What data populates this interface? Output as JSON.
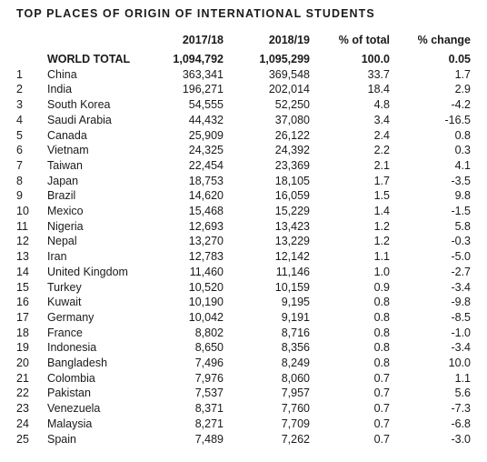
{
  "title": "TOP PLACES OF ORIGIN OF INTERNATIONAL STUDENTS",
  "columns": [
    "",
    "",
    "2017/18",
    "2018/19",
    "% of total",
    "% change"
  ],
  "total": {
    "name": "WORLD TOTAL",
    "y2017": "1,094,792",
    "y2018": "1,095,299",
    "pct_total": "100.0",
    "pct_change": "0.05"
  },
  "rows": [
    {
      "rank": "1",
      "name": "China",
      "y2017": "363,341",
      "y2018": "369,548",
      "pct_total": "33.7",
      "pct_change": "1.7"
    },
    {
      "rank": "2",
      "name": "India",
      "y2017": "196,271",
      "y2018": "202,014",
      "pct_total": "18.4",
      "pct_change": "2.9"
    },
    {
      "rank": "3",
      "name": "South Korea",
      "y2017": "54,555",
      "y2018": "52,250",
      "pct_total": "4.8",
      "pct_change": "-4.2"
    },
    {
      "rank": "4",
      "name": "Saudi Arabia",
      "y2017": "44,432",
      "y2018": "37,080",
      "pct_total": "3.4",
      "pct_change": "-16.5"
    },
    {
      "rank": "5",
      "name": "Canada",
      "y2017": "25,909",
      "y2018": "26,122",
      "pct_total": "2.4",
      "pct_change": "0.8"
    },
    {
      "rank": "6",
      "name": "Vietnam",
      "y2017": "24,325",
      "y2018": "24,392",
      "pct_total": "2.2",
      "pct_change": "0.3"
    },
    {
      "rank": "7",
      "name": "Taiwan",
      "y2017": "22,454",
      "y2018": "23,369",
      "pct_total": "2.1",
      "pct_change": "4.1"
    },
    {
      "rank": "8",
      "name": "Japan",
      "y2017": "18,753",
      "y2018": "18,105",
      "pct_total": "1.7",
      "pct_change": "-3.5"
    },
    {
      "rank": "9",
      "name": "Brazil",
      "y2017": "14,620",
      "y2018": "16,059",
      "pct_total": "1.5",
      "pct_change": "9.8"
    },
    {
      "rank": "10",
      "name": "Mexico",
      "y2017": "15,468",
      "y2018": "15,229",
      "pct_total": "1.4",
      "pct_change": "-1.5"
    },
    {
      "rank": "11",
      "name": "Nigeria",
      "y2017": "12,693",
      "y2018": "13,423",
      "pct_total": "1.2",
      "pct_change": "5.8"
    },
    {
      "rank": "12",
      "name": "Nepal",
      "y2017": "13,270",
      "y2018": "13,229",
      "pct_total": "1.2",
      "pct_change": "-0.3"
    },
    {
      "rank": "13",
      "name": "Iran",
      "y2017": "12,783",
      "y2018": "12,142",
      "pct_total": "1.1",
      "pct_change": "-5.0"
    },
    {
      "rank": "14",
      "name": "United Kingdom",
      "y2017": "11,460",
      "y2018": "11,146",
      "pct_total": "1.0",
      "pct_change": "-2.7"
    },
    {
      "rank": "15",
      "name": "Turkey",
      "y2017": "10,520",
      "y2018": "10,159",
      "pct_total": "0.9",
      "pct_change": "-3.4"
    },
    {
      "rank": "16",
      "name": "Kuwait",
      "y2017": "10,190",
      "y2018": "9,195",
      "pct_total": "0.8",
      "pct_change": "-9.8"
    },
    {
      "rank": "17",
      "name": "Germany",
      "y2017": "10,042",
      "y2018": "9,191",
      "pct_total": "0.8",
      "pct_change": "-8.5"
    },
    {
      "rank": "18",
      "name": "France",
      "y2017": "8,802",
      "y2018": "8,716",
      "pct_total": "0.8",
      "pct_change": "-1.0"
    },
    {
      "rank": "19",
      "name": "Indonesia",
      "y2017": "8,650",
      "y2018": "8,356",
      "pct_total": "0.8",
      "pct_change": "-3.4"
    },
    {
      "rank": "20",
      "name": "Bangladesh",
      "y2017": "7,496",
      "y2018": "8,249",
      "pct_total": "0.8",
      "pct_change": "10.0"
    },
    {
      "rank": "21",
      "name": "Colombia",
      "y2017": "7,976",
      "y2018": "8,060",
      "pct_total": "0.7",
      "pct_change": "1.1"
    },
    {
      "rank": "22",
      "name": "Pakistan",
      "y2017": "7,537",
      "y2018": "7,957",
      "pct_total": "0.7",
      "pct_change": "5.6"
    },
    {
      "rank": "23",
      "name": "Venezuela",
      "y2017": "8,371",
      "y2018": "7,760",
      "pct_total": "0.7",
      "pct_change": "-7.3"
    },
    {
      "rank": "24",
      "name": "Malaysia",
      "y2017": "8,271",
      "y2018": "7,709",
      "pct_total": "0.7",
      "pct_change": "-6.8"
    },
    {
      "rank": "25",
      "name": "Spain",
      "y2017": "7,489",
      "y2018": "7,262",
      "pct_total": "0.7",
      "pct_change": "-3.0"
    }
  ]
}
